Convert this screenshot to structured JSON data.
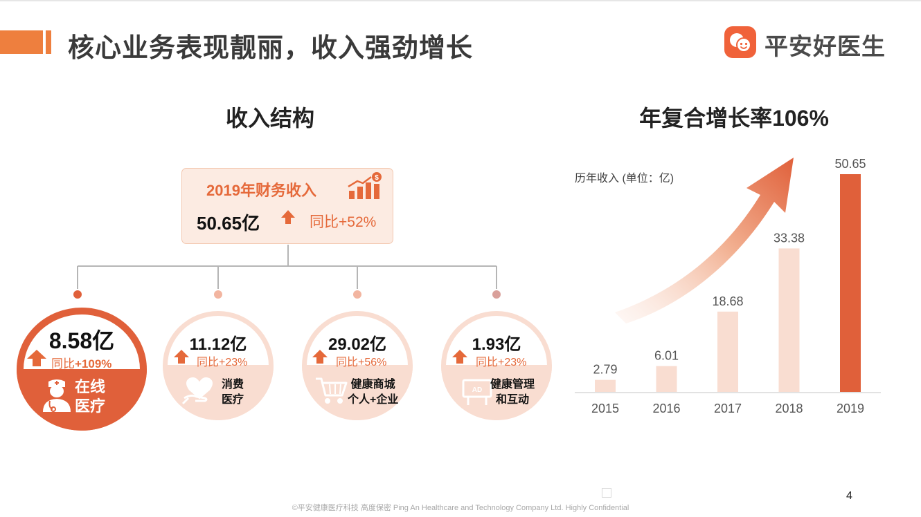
{
  "header": {
    "title": "核心业务表现靓丽，收入强劲增长",
    "logo_text": "平安好医生",
    "accent_color": "#ee7f3e"
  },
  "revenue_structure": {
    "title": "收入结构",
    "summary": {
      "label": "2019年财务收入",
      "value": "50.65亿",
      "growth": "同比+52%",
      "icon": "rising-bars-coin-icon"
    },
    "segments": [
      {
        "value": "8.58亿",
        "growth_prefix": "同比",
        "growth_value": "+109%",
        "name_line1": "在线",
        "name_line2": "医疗",
        "icon": "doctor-icon",
        "dot_color": "#e0603a"
      },
      {
        "value": "11.12亿",
        "growth_prefix": "同比",
        "growth_value": "+23%",
        "name_line1": "消费",
        "name_line2": "医疗",
        "icon": "heart-hand-icon",
        "dot_color": "#f2b5a0"
      },
      {
        "value": "29.02亿",
        "growth_prefix": "同比",
        "growth_value": "+56%",
        "name_line1": "健康商城",
        "name_line2": "个人+企业",
        "icon": "shopping-cart-icon",
        "dot_color": "#f2b5a0"
      },
      {
        "value": "1.93亿",
        "growth_prefix": "同比",
        "growth_value": "+23%",
        "name_line1": "健康管理",
        "name_line2": "和互动",
        "icon": "ad-board-icon",
        "dot_color": "#d9a09a"
      }
    ]
  },
  "chart_data": {
    "type": "bar",
    "title": "年复合增长率106%",
    "ylabel": "历年收入 (单位：亿)",
    "categories": [
      "2015",
      "2016",
      "2017",
      "2018",
      "2019"
    ],
    "values": [
      2.79,
      6.01,
      18.68,
      33.38,
      50.65
    ],
    "value_labels": [
      "2.79",
      "6.01",
      "18.68",
      "33.38",
      "50.65"
    ],
    "ylim": [
      0,
      50.65
    ],
    "grid": false,
    "colors": {
      "bar": "#f9ddd1",
      "highlight": "#e0603a"
    },
    "highlight_index": 4
  },
  "footer": {
    "text": "©平安健康医疗科技 高度保密 Ping An Healthcare and Technology Company Ltd. Highly Confidential",
    "page_number": "4"
  }
}
